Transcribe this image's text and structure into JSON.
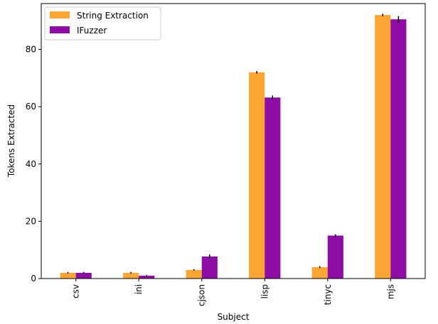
{
  "chart_data": {
    "type": "bar",
    "categories": [
      "csv",
      "ini",
      "cjson",
      "lisp",
      "tinyc",
      "mjs"
    ],
    "series": [
      {
        "name": "String Extraction",
        "color": "#FBA535",
        "values": [
          2,
          2,
          3,
          72,
          4,
          92
        ],
        "errors": [
          0.15,
          0.15,
          0.15,
          0.3,
          0.2,
          0.3
        ]
      },
      {
        "name": "IFuzzer",
        "color": "#8E0EA5",
        "values": [
          2,
          1,
          7.7,
          63.2,
          15,
          90.5
        ],
        "errors": [
          0.15,
          0.1,
          0.6,
          0.6,
          0.3,
          1.0
        ]
      }
    ],
    "xlabel": "Subject",
    "ylabel": "Tokens Extracted",
    "ylim": [
      0,
      96
    ],
    "yticks": [
      0,
      20,
      40,
      60,
      80
    ],
    "grid": false,
    "legend_position": "top-left",
    "error_bar_color": "#000000"
  }
}
